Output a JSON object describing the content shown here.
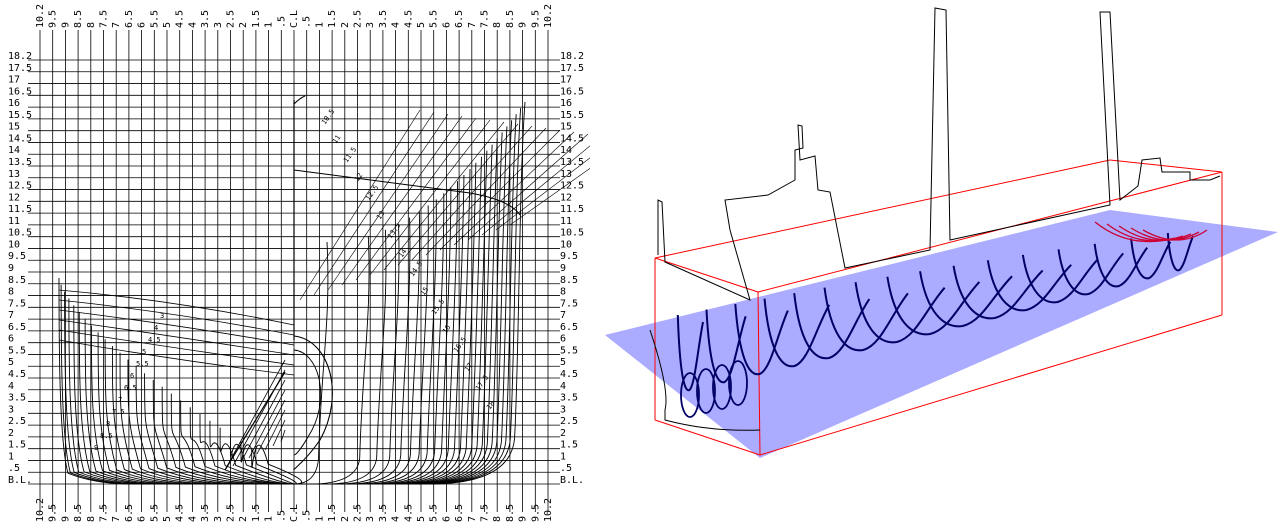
{
  "body_plan": {
    "top_labels": [
      "10.2",
      "9.5",
      "9",
      "8.5",
      "8",
      "7.5",
      "7",
      "6.5",
      "6",
      "5.5",
      "5",
      "4.5",
      "4",
      "3.5",
      "3",
      "2.5",
      "2",
      "1.5",
      "1",
      ".5",
      "C.L",
      ".5",
      "1",
      "1.5",
      "2",
      "2.5",
      "3",
      "3.5",
      "4",
      "4.5",
      "5",
      "5.5",
      "6",
      "6.5",
      "7",
      "7.5",
      "8",
      "8.5",
      "9",
      "9.5",
      "10.2"
    ],
    "bottom_labels": [
      "10.2",
      "9.5",
      "9",
      "8.5",
      "8",
      "7.5",
      "7",
      "6.5",
      "6",
      "5.5",
      "5",
      "4.5",
      "4",
      "3.5",
      "3",
      "2.5",
      "2",
      "1.5",
      "1",
      ".5",
      "C.L",
      ".5",
      "1",
      "1.5",
      "2",
      "2.5",
      "3",
      "3.5",
      "4",
      "4.5",
      "5",
      "5.5",
      "6",
      "6.5",
      "7",
      "7.5",
      "8",
      "8.5",
      "9",
      "9.5",
      "10.2"
    ],
    "waterline_labels": [
      "18.2",
      "17.5",
      "17",
      "16.5",
      "16",
      "15.5",
      "15",
      "14.5",
      "14",
      "13.5",
      "13",
      "12.5",
      "12",
      "11.5",
      "11",
      "10.5",
      "10",
      "9.5",
      "9",
      "8.5",
      "8",
      "7.5",
      "7",
      "6.5",
      "6",
      "5.5",
      "5",
      "4.5",
      "4",
      "3.5",
      "3",
      "2.5",
      "2",
      "1.5",
      "1",
      ".5",
      "B.L."
    ],
    "aft_station_labels": [
      "3",
      "4",
      "4.5",
      "5",
      "5.5",
      "6",
      "6.5",
      "7",
      "7.5",
      "8",
      "8.5",
      "9"
    ],
    "fore_station_labels": [
      "10.5",
      "11",
      "11.5",
      "12",
      "12.5",
      "13",
      "13.5",
      "14",
      "14.5",
      "15",
      "15.5",
      "16",
      "16.5",
      "17",
      "17.5",
      "18"
    ],
    "colors": {
      "line": "#000000",
      "background": "#ffffff"
    }
  },
  "iso_view": {
    "colors": {
      "waterplane": "#9c9cff",
      "box": "#ff0000",
      "hull_sections": "#000066",
      "profile": "#000000",
      "bow_sections": "#cc0033"
    }
  }
}
